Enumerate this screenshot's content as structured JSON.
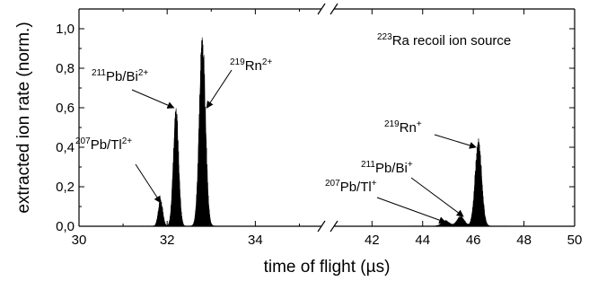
{
  "chart_data": {
    "type": "area",
    "xlabel": "time of flight (µs)",
    "ylabel": "extracted ion rate (norm.)",
    "x_axis_broken": true,
    "x_segments": [
      {
        "range": [
          30,
          35.5
        ],
        "ticks": [
          "30",
          "32",
          "34"
        ]
      },
      {
        "range": [
          40.5,
          50
        ],
        "ticks": [
          "42",
          "44",
          "46",
          "48",
          "50"
        ]
      }
    ],
    "ylim": [
      0,
      1.1
    ],
    "y_ticks": [
      "0,0",
      "0,2",
      "0,4",
      "0,6",
      "0,8",
      "1,0"
    ],
    "legend_text": {
      "pre": "223",
      "main": "Ra recoil ion source"
    },
    "peaks": [
      {
        "x": 31.85,
        "y": 0.14,
        "w": 0.05
      },
      {
        "x": 32.2,
        "y": 0.62,
        "w": 0.06
      },
      {
        "x": 32.8,
        "y": 1.0,
        "w": 0.07
      },
      {
        "x": 44.9,
        "y": 0.03,
        "w": 0.15
      },
      {
        "x": 45.5,
        "y": 0.05,
        "w": 0.15
      },
      {
        "x": 46.2,
        "y": 0.45,
        "w": 0.13
      }
    ],
    "annotations": [
      {
        "pre": "207",
        "base": "Pb/Tl",
        "sup": "2+",
        "target_x": 31.85,
        "target_y": 0.12
      },
      {
        "pre": "211",
        "base": "Pb/Bi",
        "sup": "2+",
        "target_x": 32.15,
        "target_y": 0.6
      },
      {
        "pre": "219",
        "base": "Rn",
        "sup": "2+",
        "target_x": 32.9,
        "target_y": 0.6
      },
      {
        "pre": "219",
        "base": "Rn",
        "sup": "+",
        "target_x": 46.1,
        "target_y": 0.4
      },
      {
        "pre": "211",
        "base": "Pb/Bi",
        "sup": "+",
        "target_x": 45.6,
        "target_y": 0.05
      },
      {
        "pre": "207",
        "base": "Pb/Tl",
        "sup": "+",
        "target_x": 44.9,
        "target_y": 0.02
      }
    ]
  }
}
